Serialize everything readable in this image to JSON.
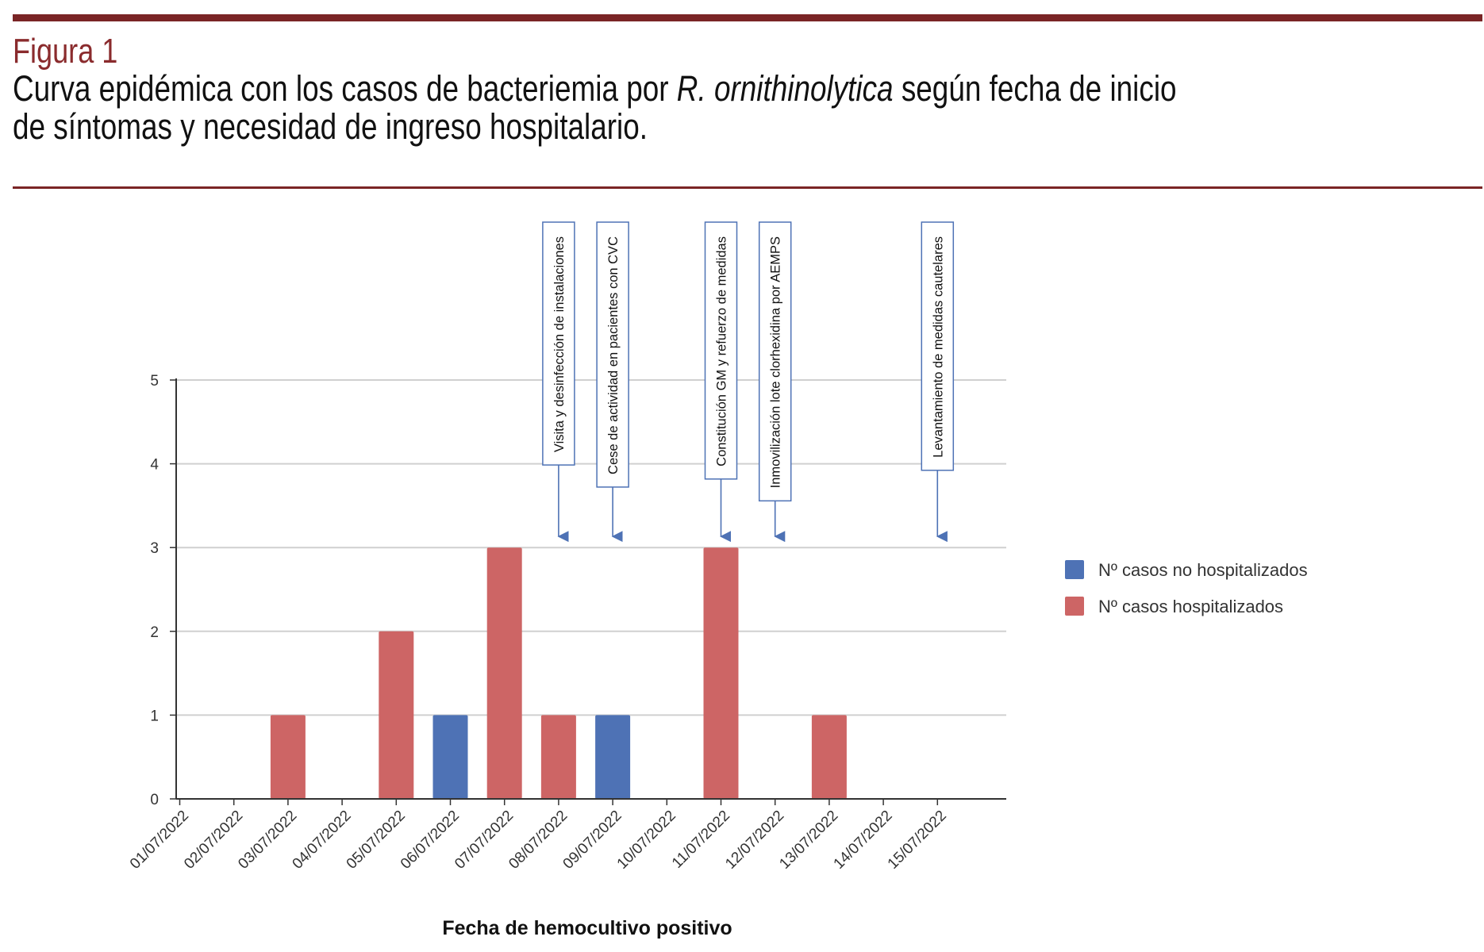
{
  "figure": {
    "label": "Figura 1",
    "title_part1": "Curva epidémica con los casos de bacteriemia por ",
    "title_italic": "R. ornithinolytica",
    "title_part2": " según fecha de inicio",
    "title_line2": "de síntomas y necesidad de ingreso hospitalario."
  },
  "colors": {
    "rule": "#7a2526",
    "label": "#8a2b2d",
    "no_hosp": "#4e72b5",
    "hosp": "#cd6565",
    "arrow": "#4e72b5"
  },
  "chart_data": {
    "type": "bar",
    "stacked": true,
    "xlabel": "Fecha de hemocultivo positivo",
    "ylabel": "",
    "ylim": [
      0,
      5
    ],
    "yticks": [
      0,
      1,
      2,
      3,
      4,
      5
    ],
    "grid": true,
    "legend_position": "right",
    "categories": [
      "01/07/2022",
      "02/07/2022",
      "03/07/2022",
      "04/07/2022",
      "05/07/2022",
      "06/07/2022",
      "07/07/2022",
      "08/07/2022",
      "09/07/2022",
      "10/07/2022",
      "11/07/2022",
      "12/07/2022",
      "13/07/2022",
      "14/07/2022",
      "15/07/2022"
    ],
    "series": [
      {
        "name": "Nº casos no hospitalizados",
        "color": "#4e72b5",
        "values": [
          0,
          0,
          0,
          0,
          0,
          1,
          0,
          0,
          1,
          0,
          0,
          0,
          0,
          0,
          0
        ]
      },
      {
        "name": "Nº casos hospitalizados",
        "color": "#cd6565",
        "values": [
          0,
          0,
          1,
          0,
          2,
          0,
          3,
          1,
          0,
          0,
          3,
          0,
          1,
          0,
          0
        ]
      }
    ],
    "annotations": [
      {
        "text": "Visita y desinfección de instalaciones",
        "x": "08/07/2022",
        "y": 3
      },
      {
        "text": "Cese de actividad en pacientes con CVC",
        "x": "09/07/2022",
        "y": 3
      },
      {
        "text": "Constitución GM y refuerzo de medidas",
        "x": "11/07/2022",
        "y": 3
      },
      {
        "text": "Inmovilización lote clorhexidina por AEMPS",
        "x": "12/07/2022",
        "y": 3
      },
      {
        "text": "Levantamiento de medidas cautelares",
        "x": "15/07/2022",
        "y": 3
      }
    ]
  }
}
